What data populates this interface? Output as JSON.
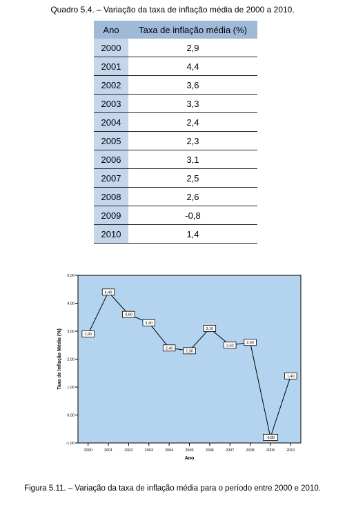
{
  "table_caption": "Quadro 5.4. – Variação da taxa de inflação média de 2000 a 2010.",
  "table": {
    "headers": [
      "Ano",
      "Taxa de inflação média (%)"
    ],
    "rows": [
      [
        "2000",
        "2,9"
      ],
      [
        "2001",
        "4,4"
      ],
      [
        "2002",
        "3,6"
      ],
      [
        "2003",
        "3,3"
      ],
      [
        "2004",
        "2,4"
      ],
      [
        "2005",
        "2,3"
      ],
      [
        "2006",
        "3,1"
      ],
      [
        "2007",
        "2,5"
      ],
      [
        "2008",
        "2,6"
      ],
      [
        "2009",
        "-0,8"
      ],
      [
        "2010",
        "1,4"
      ]
    ]
  },
  "figure_caption": "Figura 5.11. – Variação da taxa de inflação média para o período entre 2000 e 2010.",
  "chart_data": {
    "type": "line",
    "xlabel": "Ano",
    "ylabel": "Taxa de Inflação Média (%)",
    "x": [
      "2000",
      "2001",
      "2002",
      "2003",
      "2004",
      "2005",
      "2006",
      "2007",
      "2008",
      "2009",
      "2010"
    ],
    "values": [
      2.9,
      4.4,
      3.6,
      3.3,
      2.4,
      2.3,
      3.1,
      2.5,
      2.6,
      -0.8,
      1.4
    ],
    "data_labels": [
      "2,90",
      "4,40",
      "3,60",
      "3,30",
      "2,40",
      "2,30",
      "3,10",
      "2,50",
      "2,60",
      "-0,80",
      "1,40"
    ],
    "yticks": [
      "-1,00",
      "0,00",
      "1,00",
      "2,00",
      "3,00",
      "4,00",
      "5,00"
    ],
    "ylim": [
      -1,
      5
    ],
    "grid": false,
    "legend": "none",
    "plot_background": "#b3d3ee",
    "line_color": "#000000"
  }
}
